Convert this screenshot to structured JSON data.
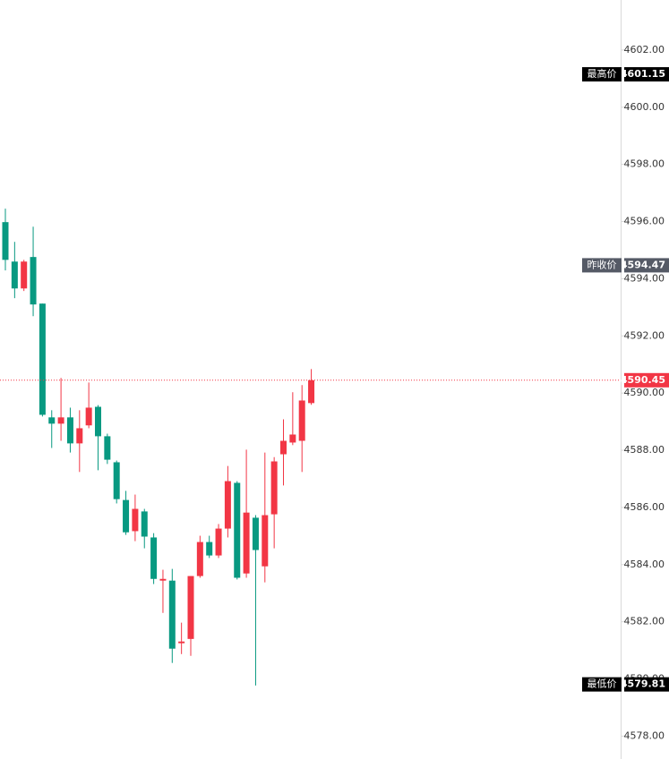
{
  "chart_data": {
    "type": "candlestick",
    "open": [
      4595.98,
      4594.6,
      4593.66,
      4594.76,
      4593.13,
      4589.15,
      4588.93,
      4589.15,
      4588.24,
      4588.87,
      4589.52,
      4588.49,
      4587.58,
      4586.26,
      4585.17,
      4585.86,
      4584.95,
      4583.44,
      4583.44,
      4581.25,
      4581.4,
      4583.6,
      4584.79,
      4584.32,
      4585.26,
      4586.86,
      4583.69,
      4585.64,
      4583.94,
      4585.76,
      4587.86,
      4588.27,
      4588.33,
      4589.65
    ],
    "high": [
      4596.45,
      4595.29,
      4594.66,
      4595.82,
      4593.13,
      4589.4,
      4590.53,
      4589.49,
      4589.4,
      4590.37,
      4589.58,
      4588.58,
      4587.64,
      4586.58,
      4586.45,
      4585.95,
      4585.1,
      4583.82,
      4583.85,
      4581.97,
      4583.6,
      4585.01,
      4585.01,
      4585.42,
      4587.45,
      4586.92,
      4588.02,
      4585.73,
      4587.92,
      4587.76,
      4589.08,
      4590.03,
      4590.28,
      4590.84
    ],
    "low": [
      4594.29,
      4593.32,
      4593.57,
      4592.69,
      4589.18,
      4588.08,
      4588.33,
      4587.92,
      4587.24,
      4588.77,
      4587.3,
      4587.52,
      4586.14,
      4585.04,
      4584.82,
      4584.57,
      4583.32,
      4582.31,
      4580.56,
      4580.87,
      4580.81,
      4583.54,
      4584.23,
      4584.23,
      4584.95,
      4583.48,
      4583.54,
      4579.77,
      4583.38,
      4584.57,
      4586.77,
      4588.18,
      4587.24,
      4589.59
    ],
    "close": [
      4594.66,
      4593.66,
      4594.6,
      4593.1,
      4589.24,
      4588.93,
      4589.15,
      4588.24,
      4588.77,
      4589.49,
      4588.49,
      4587.67,
      4586.29,
      4585.13,
      4585.95,
      4584.98,
      4583.5,
      4583.5,
      4581.06,
      4581.31,
      4583.6,
      4584.79,
      4584.32,
      4585.26,
      4586.92,
      4583.54,
      4585.82,
      4584.51,
      4585.73,
      4587.61,
      4588.33,
      4588.55,
      4589.74,
      4590.45
    ],
    "up_color": "#f23645",
    "down_color": "#089981",
    "ylim": [
      4577.2,
      4603.75
    ],
    "yticks": [
      {
        "value": 4578,
        "label": "4578.00"
      },
      {
        "value": 4580,
        "label": "4580.00"
      },
      {
        "value": 4582,
        "label": "4582.00"
      },
      {
        "value": 4584,
        "label": "4584.00"
      },
      {
        "value": 4586,
        "label": "4586.00"
      },
      {
        "value": 4588,
        "label": "4588.00"
      },
      {
        "value": 4590,
        "label": "4590.00"
      },
      {
        "value": 4592,
        "label": "4592.00"
      },
      {
        "value": 4594,
        "label": "4594.00"
      },
      {
        "value": 4596,
        "label": "4596.00"
      },
      {
        "value": 4598,
        "label": "4598.00"
      },
      {
        "value": 4600,
        "label": "4600.00"
      },
      {
        "value": 4602,
        "label": "4602.00"
      }
    ],
    "markers": [
      {
        "label": "最高价",
        "value": 4601.15,
        "color": "#000000"
      },
      {
        "label": "昨收价",
        "value": 4594.47,
        "color": "#555a66"
      },
      {
        "label": null,
        "value": 4590.45,
        "color": "#f23645",
        "line": true
      },
      {
        "label": "最低价",
        "value": 4579.81,
        "color": "#000000"
      }
    ]
  }
}
